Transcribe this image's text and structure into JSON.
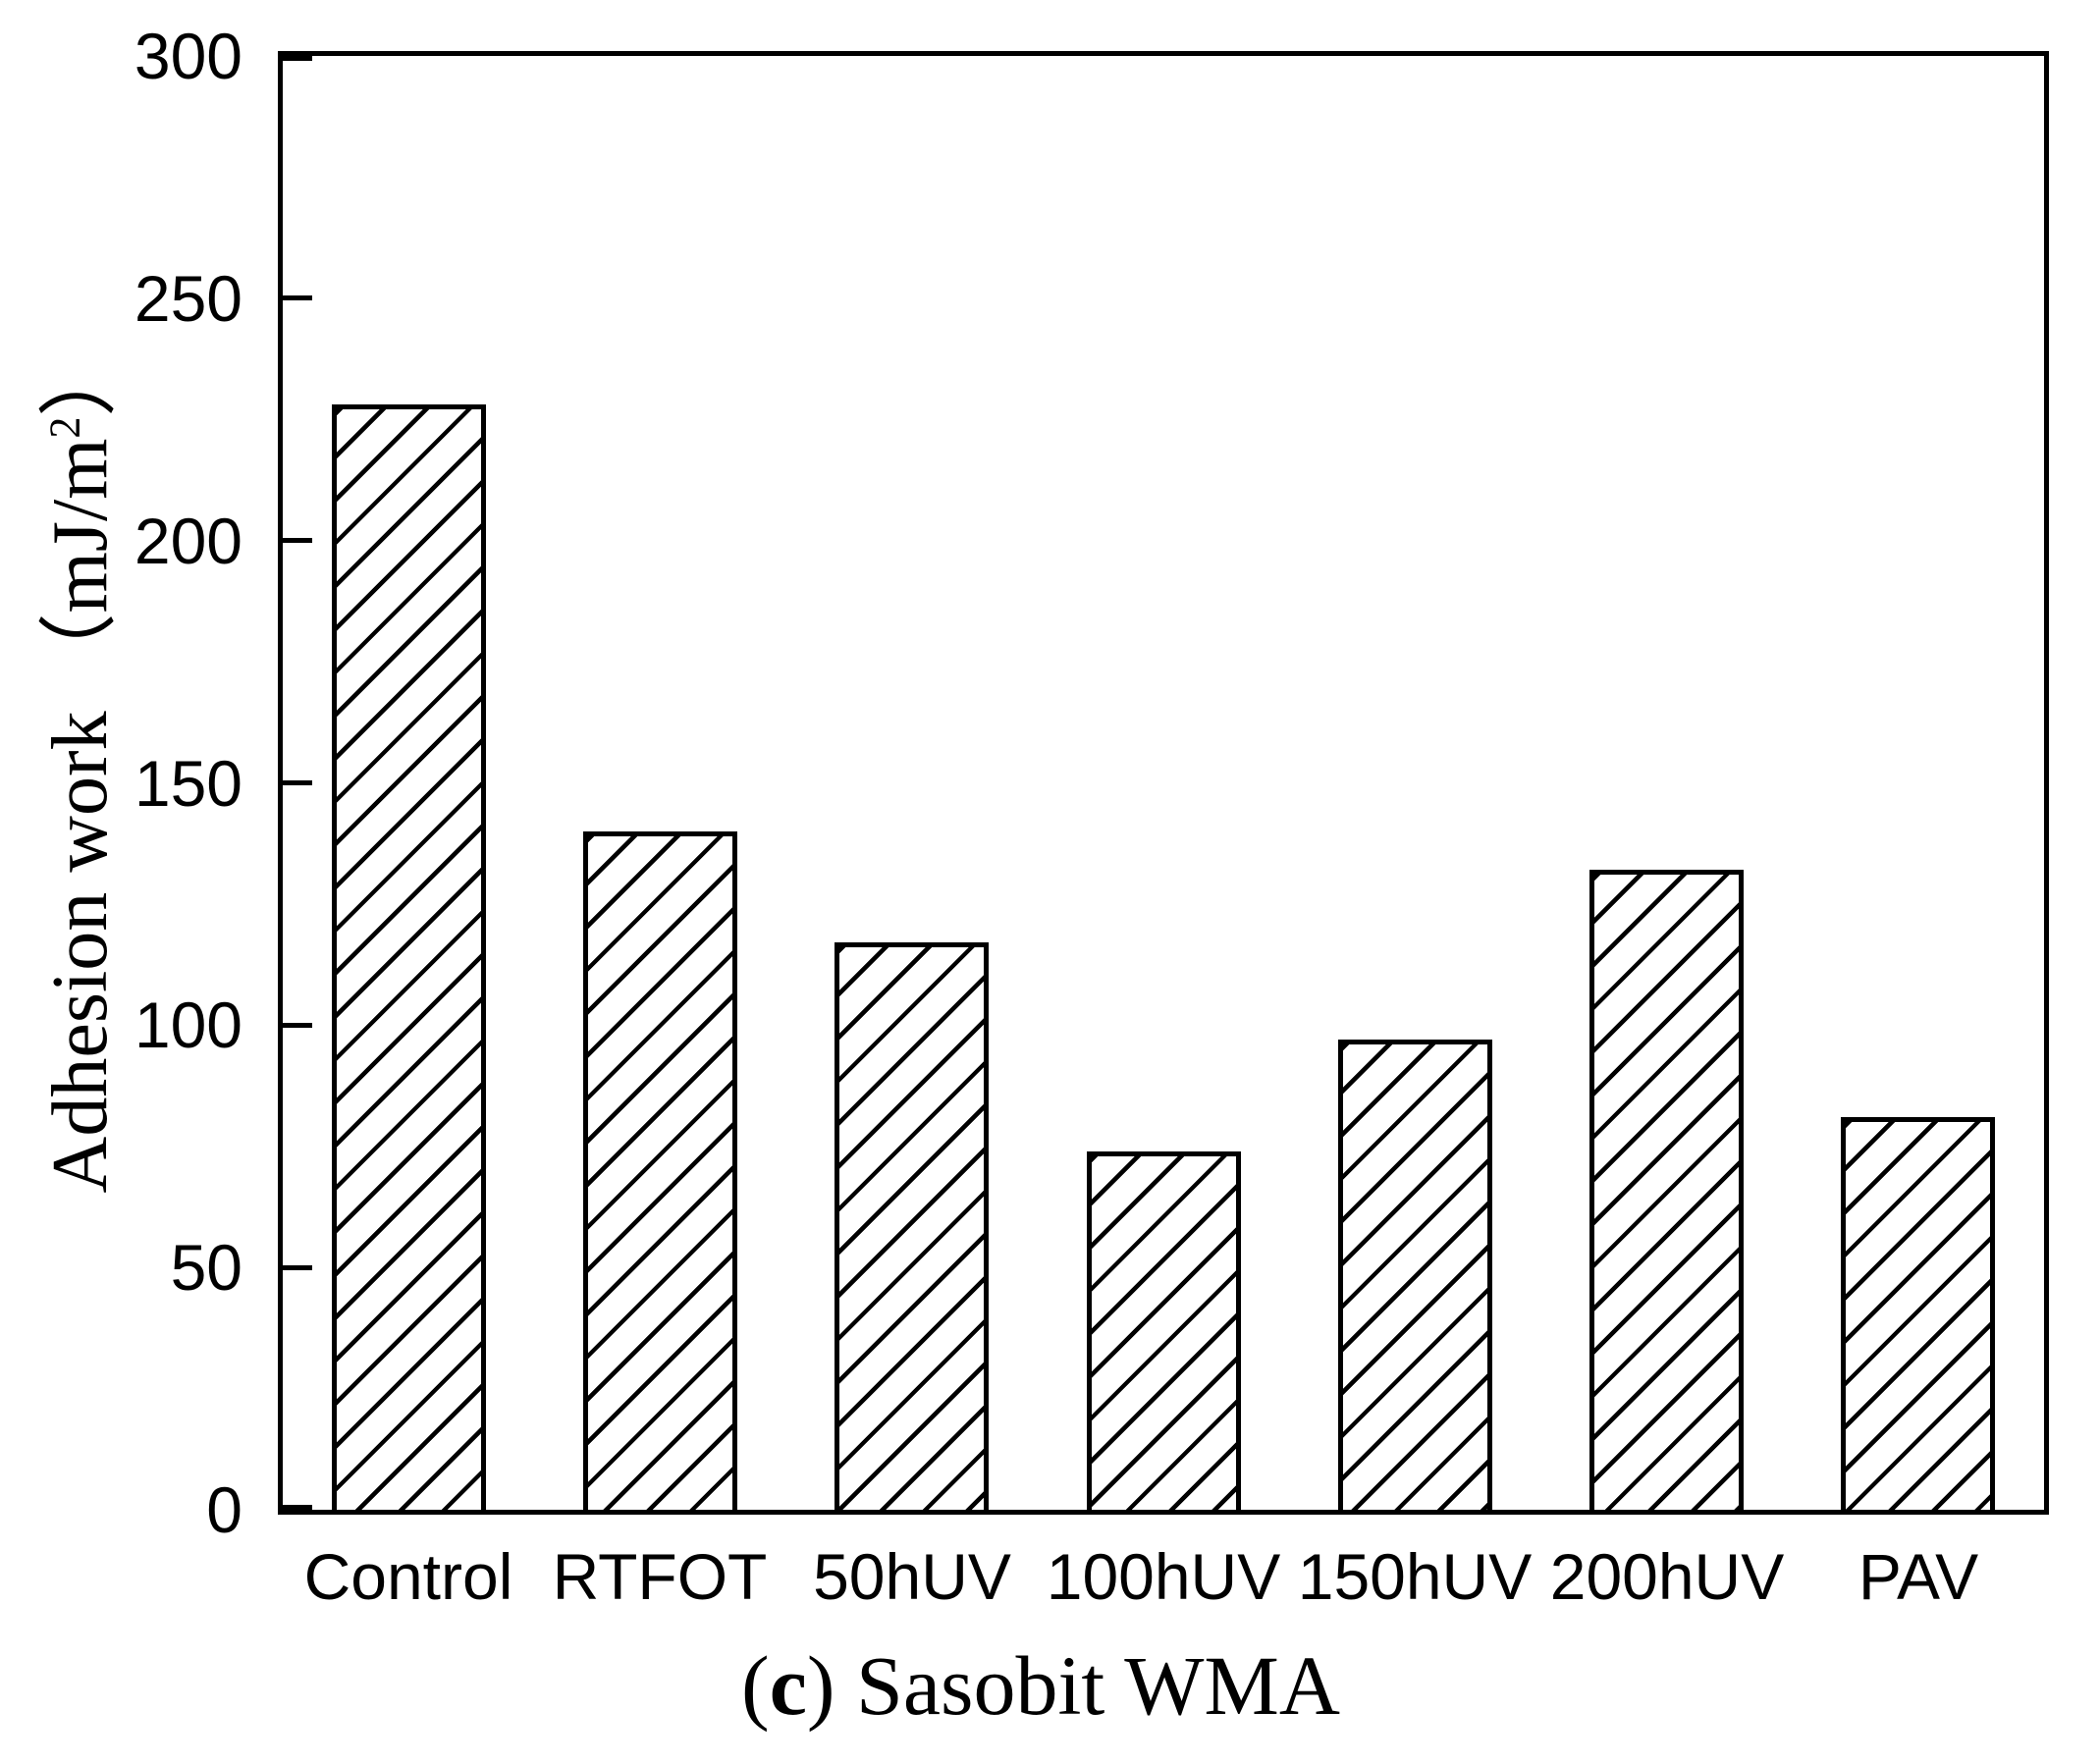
{
  "chart_data": {
    "type": "bar",
    "categories": [
      "Control",
      "RTFOT",
      "50hUV",
      "100hUV",
      "150hUV",
      "200hUV",
      "PAV"
    ],
    "values": [
      228,
      140,
      117,
      74,
      97,
      132,
      81
    ],
    "title": "(c) Sasobit WMA",
    "xlabel": "",
    "ylabel": "Adhesion work （mJ/m²）",
    "ylim": [
      0,
      300
    ],
    "yticks": [
      0,
      50,
      100,
      150,
      200,
      250,
      300
    ],
    "grid": "off",
    "legend": "none",
    "bar_style": {
      "fill_color": "#ffffff",
      "hatch": "forward-diagonal-lines",
      "line_color": "#000000"
    }
  },
  "ui": {
    "y_title": {
      "main": "Adhesion work （mJ/m",
      "sup": "2",
      "close": "）"
    },
    "caption": {
      "open": "(",
      "letter": "c",
      "rest": ") Sasobit WMA"
    }
  }
}
